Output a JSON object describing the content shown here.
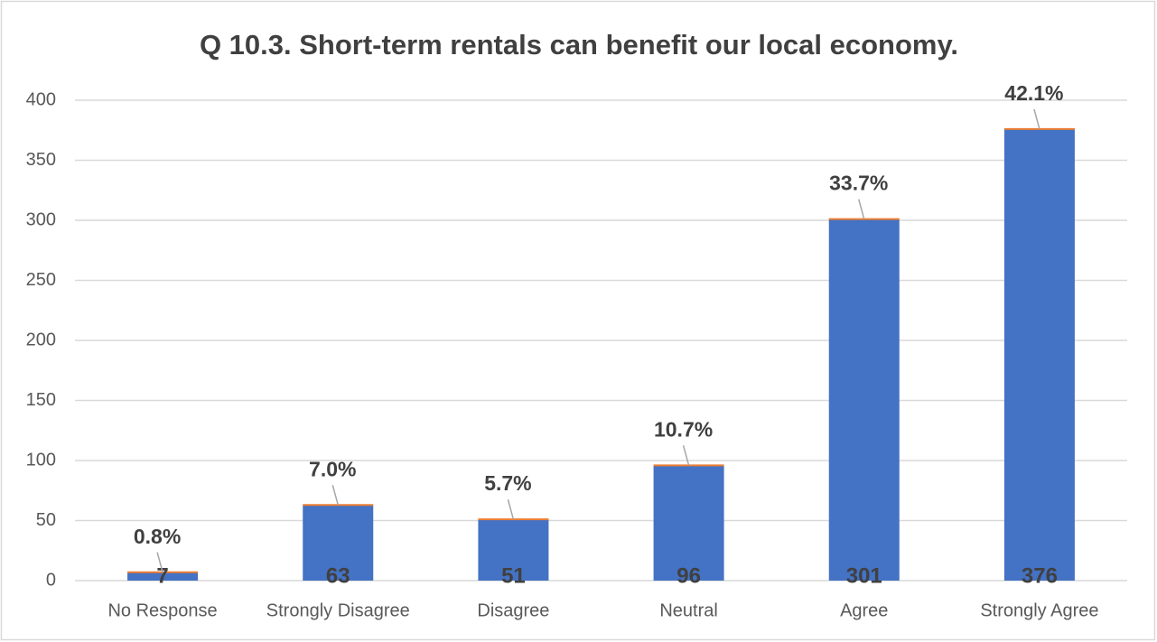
{
  "chart_data": {
    "type": "bar",
    "title": "Q 10.3.  Short-term rentals can benefit our local economy.",
    "categories": [
      "No Response",
      "Strongly Disagree",
      "Disagree",
      "Neutral",
      "Agree",
      "Strongly Agree"
    ],
    "values": [
      7,
      63,
      51,
      96,
      301,
      376
    ],
    "percent_labels": [
      "0.8%",
      "7.0%",
      "5.7%",
      "10.7%",
      "33.7%",
      "42.1%"
    ],
    "color": "#4472c4",
    "ylim": [
      0,
      400
    ],
    "yticks": [
      0,
      50,
      100,
      150,
      200,
      250,
      300,
      350,
      400
    ],
    "grid": true
  }
}
